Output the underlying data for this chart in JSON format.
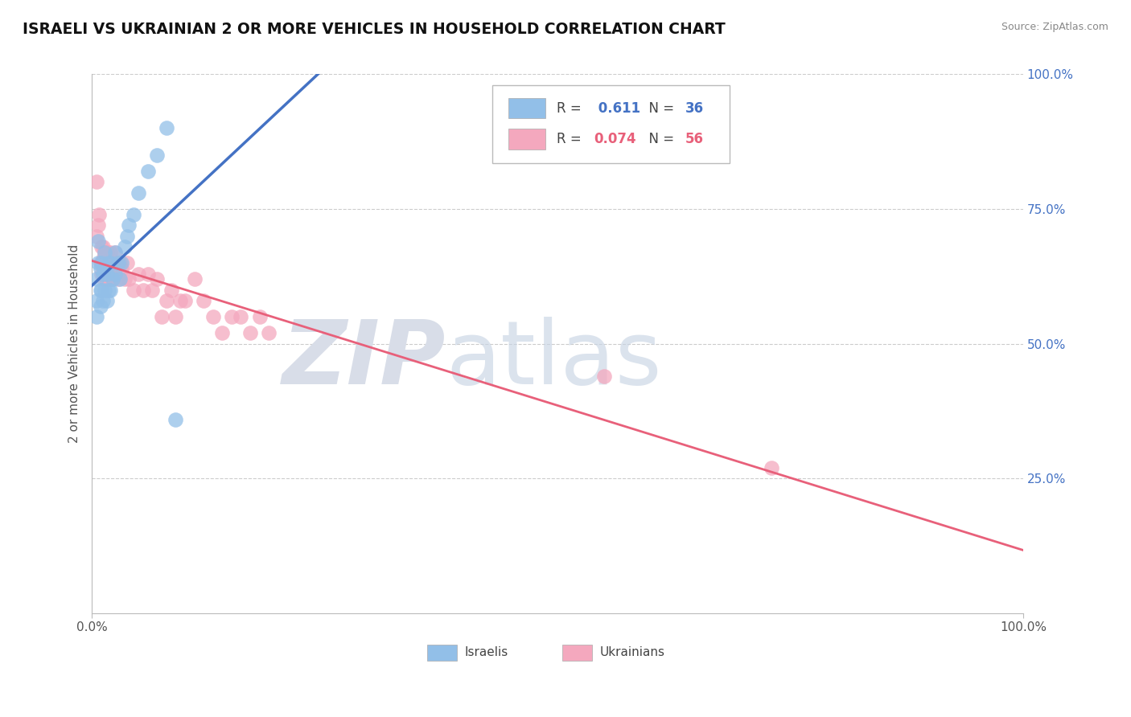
{
  "title": "ISRAELI VS UKRAINIAN 2 OR MORE VEHICLES IN HOUSEHOLD CORRELATION CHART",
  "source": "Source: ZipAtlas.com",
  "ylabel": "2 or more Vehicles in Household",
  "xlim": [
    0.0,
    1.0
  ],
  "ylim": [
    0.0,
    1.0
  ],
  "xtick_labels": [
    "0.0%",
    "100.0%"
  ],
  "ytick_labels": [
    "25.0%",
    "50.0%",
    "75.0%",
    "100.0%"
  ],
  "ytick_values": [
    0.25,
    0.5,
    0.75,
    1.0
  ],
  "grid_color": "#cccccc",
  "background_color": "#ffffff",
  "israeli_color": "#92BFE8",
  "ukrainian_color": "#F4A8BE",
  "israeli_line_color": "#4472C4",
  "ukrainian_line_color": "#E8607A",
  "israeli_R": 0.611,
  "israeli_N": 36,
  "ukrainian_R": 0.074,
  "ukrainian_N": 56,
  "israeli_x": [
    0.005,
    0.005,
    0.005,
    0.007,
    0.007,
    0.009,
    0.009,
    0.009,
    0.01,
    0.01,
    0.012,
    0.012,
    0.014,
    0.014,
    0.014,
    0.016,
    0.016,
    0.018,
    0.018,
    0.02,
    0.02,
    0.022,
    0.025,
    0.025,
    0.028,
    0.03,
    0.032,
    0.035,
    0.038,
    0.04,
    0.045,
    0.05,
    0.06,
    0.07,
    0.08,
    0.09
  ],
  "israeli_y": [
    0.58,
    0.62,
    0.55,
    0.65,
    0.69,
    0.57,
    0.6,
    0.64,
    0.6,
    0.65,
    0.58,
    0.63,
    0.6,
    0.64,
    0.67,
    0.58,
    0.63,
    0.6,
    0.65,
    0.6,
    0.65,
    0.62,
    0.63,
    0.67,
    0.65,
    0.62,
    0.65,
    0.68,
    0.7,
    0.72,
    0.74,
    0.78,
    0.82,
    0.85,
    0.9,
    0.36
  ],
  "ukrainian_x": [
    0.005,
    0.005,
    0.007,
    0.008,
    0.009,
    0.01,
    0.01,
    0.012,
    0.012,
    0.013,
    0.013,
    0.014,
    0.014,
    0.015,
    0.015,
    0.016,
    0.016,
    0.018,
    0.018,
    0.019,
    0.02,
    0.02,
    0.022,
    0.022,
    0.025,
    0.025,
    0.027,
    0.028,
    0.03,
    0.032,
    0.035,
    0.038,
    0.04,
    0.045,
    0.05,
    0.055,
    0.06,
    0.065,
    0.07,
    0.075,
    0.08,
    0.085,
    0.09,
    0.095,
    0.1,
    0.11,
    0.12,
    0.13,
    0.14,
    0.15,
    0.16,
    0.17,
    0.18,
    0.19,
    0.55,
    0.73
  ],
  "ukrainian_y": [
    0.7,
    0.8,
    0.72,
    0.74,
    0.65,
    0.63,
    0.68,
    0.65,
    0.68,
    0.62,
    0.66,
    0.64,
    0.67,
    0.62,
    0.65,
    0.63,
    0.67,
    0.62,
    0.65,
    0.64,
    0.62,
    0.67,
    0.62,
    0.65,
    0.63,
    0.67,
    0.65,
    0.62,
    0.65,
    0.64,
    0.62,
    0.65,
    0.62,
    0.6,
    0.63,
    0.6,
    0.63,
    0.6,
    0.62,
    0.55,
    0.58,
    0.6,
    0.55,
    0.58,
    0.58,
    0.62,
    0.58,
    0.55,
    0.52,
    0.55,
    0.55,
    0.52,
    0.55,
    0.52,
    0.44,
    0.27
  ]
}
